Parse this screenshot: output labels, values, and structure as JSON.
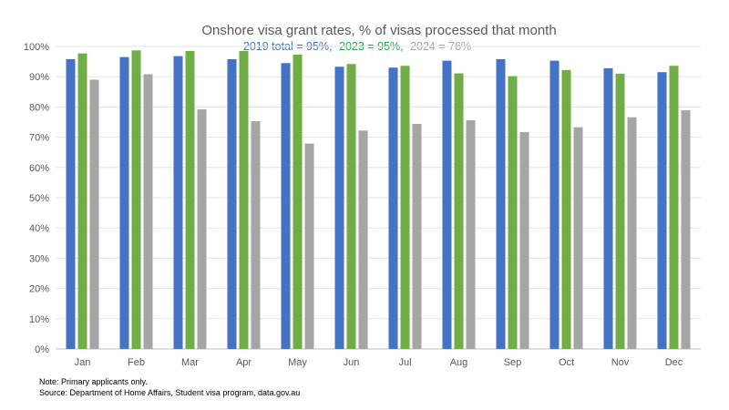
{
  "chart_data": {
    "type": "bar",
    "title": "Onshore visa grant rates, % of visas processed that month",
    "subtitle_parts": [
      {
        "text": "2019 total = 95%,",
        "color": "#4472C4"
      },
      {
        "text": "2023 = 95%,",
        "color": "#22A84A"
      },
      {
        "text": "2024 = 76%",
        "color": "#A5A5A5"
      }
    ],
    "categories": [
      "Jan",
      "Feb",
      "Mar",
      "Apr",
      "May",
      "Jun",
      "Jul",
      "Aug",
      "Sep",
      "Oct",
      "Nov",
      "Dec"
    ],
    "series": [
      {
        "name": "2019",
        "color": "#4472C4",
        "values": [
          95.8,
          96.5,
          96.8,
          95.8,
          94.5,
          93.3,
          93.0,
          95.3,
          95.8,
          95.3,
          92.8,
          91.5
        ]
      },
      {
        "name": "2023",
        "color": "#70AD47",
        "values": [
          97.7,
          98.7,
          98.5,
          98.5,
          97.3,
          94.2,
          93.6,
          91.1,
          90.2,
          92.2,
          91.0,
          93.6
        ]
      },
      {
        "name": "2024",
        "color": "#A5A5A5",
        "values": [
          89.0,
          90.8,
          79.2,
          75.3,
          67.9,
          72.2,
          74.4,
          75.6,
          71.7,
          73.3,
          76.6,
          78.9
        ]
      }
    ],
    "ylim": [
      0,
      100
    ],
    "yticks": [
      "0%",
      "10%",
      "20%",
      "30%",
      "40%",
      "50%",
      "60%",
      "70%",
      "80%",
      "90%",
      "100%"
    ],
    "grid": true,
    "xlabel": "",
    "ylabel": ""
  },
  "notes": {
    "note": "Note: Primary applicants only.",
    "source": "Source: Department of Home Affairs, Student visa program, data.gov.au"
  }
}
